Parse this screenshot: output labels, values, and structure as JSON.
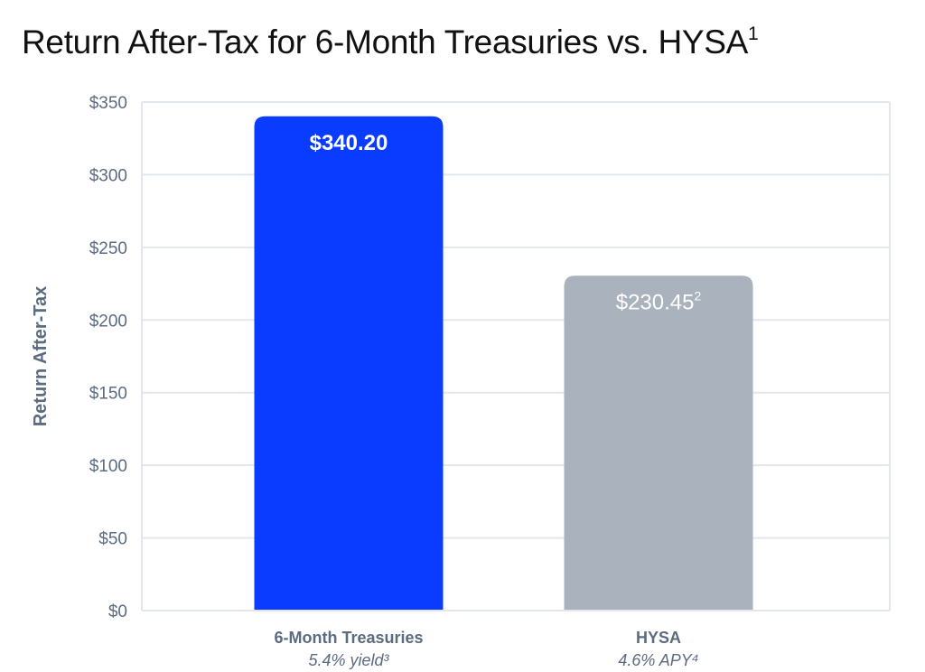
{
  "chart_data": {
    "type": "bar",
    "title": "Return After-Tax for 6-Month Treasuries vs. HYSA",
    "title_footnote": "1",
    "ylabel": "Return After-Tax",
    "xlabel": "",
    "ylim": [
      0,
      350
    ],
    "yticks": [
      "$0",
      "$50",
      "$100",
      "$150",
      "$200",
      "$250",
      "$300",
      "$350"
    ],
    "grid": true,
    "categories": [
      {
        "label": "6-Month Treasuries",
        "sublabel": "5.4% yield³",
        "value": 340.2,
        "value_label": "$340.20",
        "value_footnote": "",
        "color": "#0a3cff"
      },
      {
        "label": "HYSA",
        "sublabel": "4.6% APY⁴",
        "value": 230.45,
        "value_label": "$230.45",
        "value_footnote": "2",
        "color": "#a9b2bd"
      }
    ],
    "colors": {
      "axis_text": "#5b6b80",
      "grid": "#e3e6ec",
      "bar_label": "#ffffff"
    }
  }
}
